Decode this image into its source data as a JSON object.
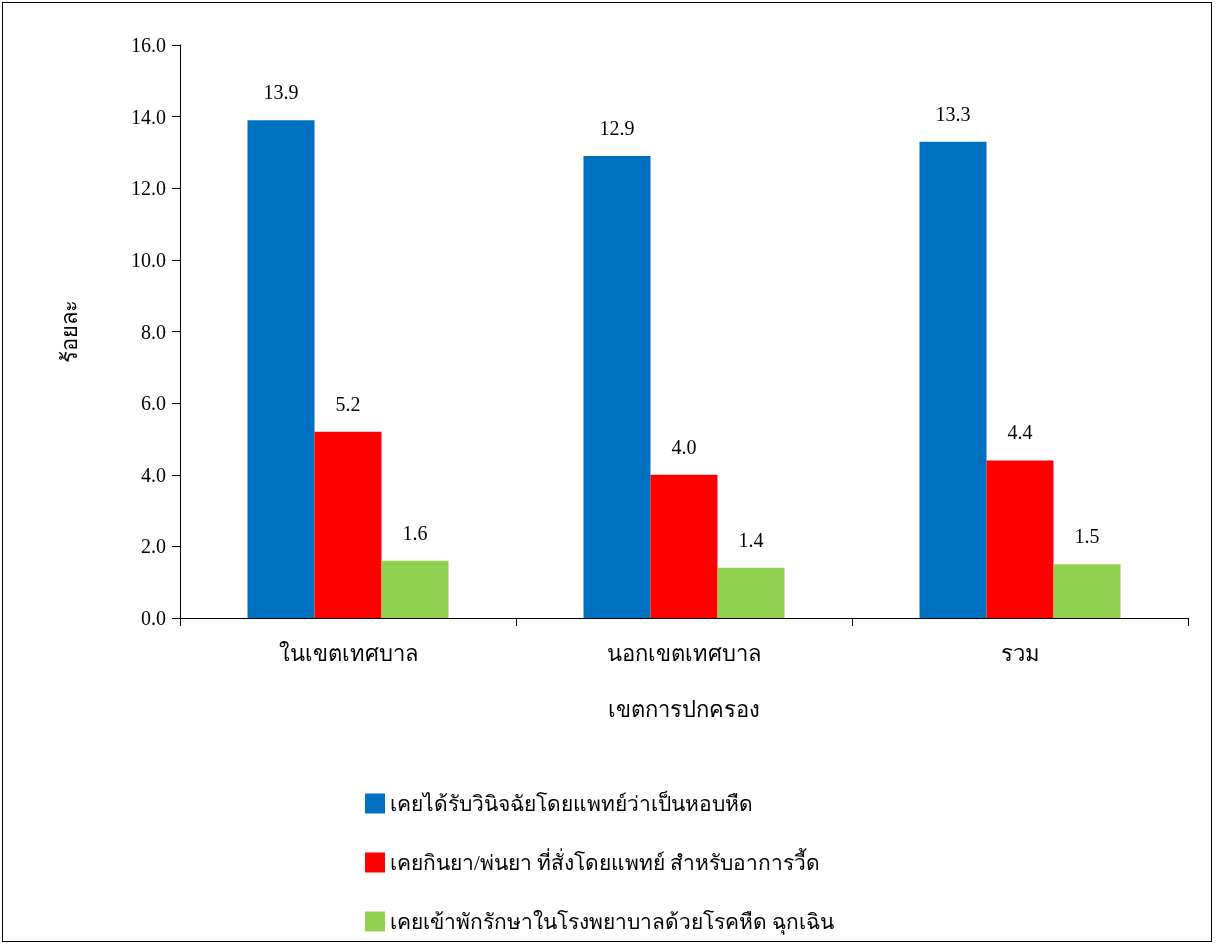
{
  "chart_data": {
    "type": "bar",
    "xlabel": "เขตการปกครอง",
    "ylabel": "ร้อยละ",
    "categories": [
      "ในเขตเทศบาล",
      "นอกเขตเทศบาล",
      "รวม"
    ],
    "series": [
      {
        "name": "เคยได้รับวินิจฉัยโดยแพทย์ว่าเป็นหอบหืด",
        "color": "#0070c0",
        "values": [
          13.9,
          12.9,
          13.3
        ],
        "value_labels": [
          "13.9",
          "12.9",
          "13.3"
        ]
      },
      {
        "name": "เคยกินยา/พ่นยา ที่สั่งโดยแพทย์ สำหรับอาการวี้ด",
        "color": "#ff0000",
        "values": [
          5.2,
          4.0,
          4.4
        ],
        "value_labels": [
          "5.2",
          "4.0",
          "4.4"
        ]
      },
      {
        "name": "เคยเข้าพักรักษาในโรงพยาบาลด้วยโรคหืด ฉุกเฉิน",
        "color": "#92d050",
        "values": [
          1.6,
          1.4,
          1.5
        ],
        "value_labels": [
          "1.6",
          "1.4",
          "1.5"
        ]
      }
    ],
    "ylim": [
      0,
      16
    ],
    "yticks": [
      {
        "value": 0,
        "label": "0.0"
      },
      {
        "value": 2,
        "label": "2.0"
      },
      {
        "value": 4,
        "label": "4.0"
      },
      {
        "value": 6,
        "label": "6.0"
      },
      {
        "value": 8,
        "label": "8.0"
      },
      {
        "value": 10,
        "label": "10.0"
      },
      {
        "value": 12,
        "label": "12.0"
      },
      {
        "value": 14,
        "label": "14.0"
      },
      {
        "value": 16,
        "label": "16.0"
      }
    ],
    "grid": false,
    "legend": "bottom"
  }
}
